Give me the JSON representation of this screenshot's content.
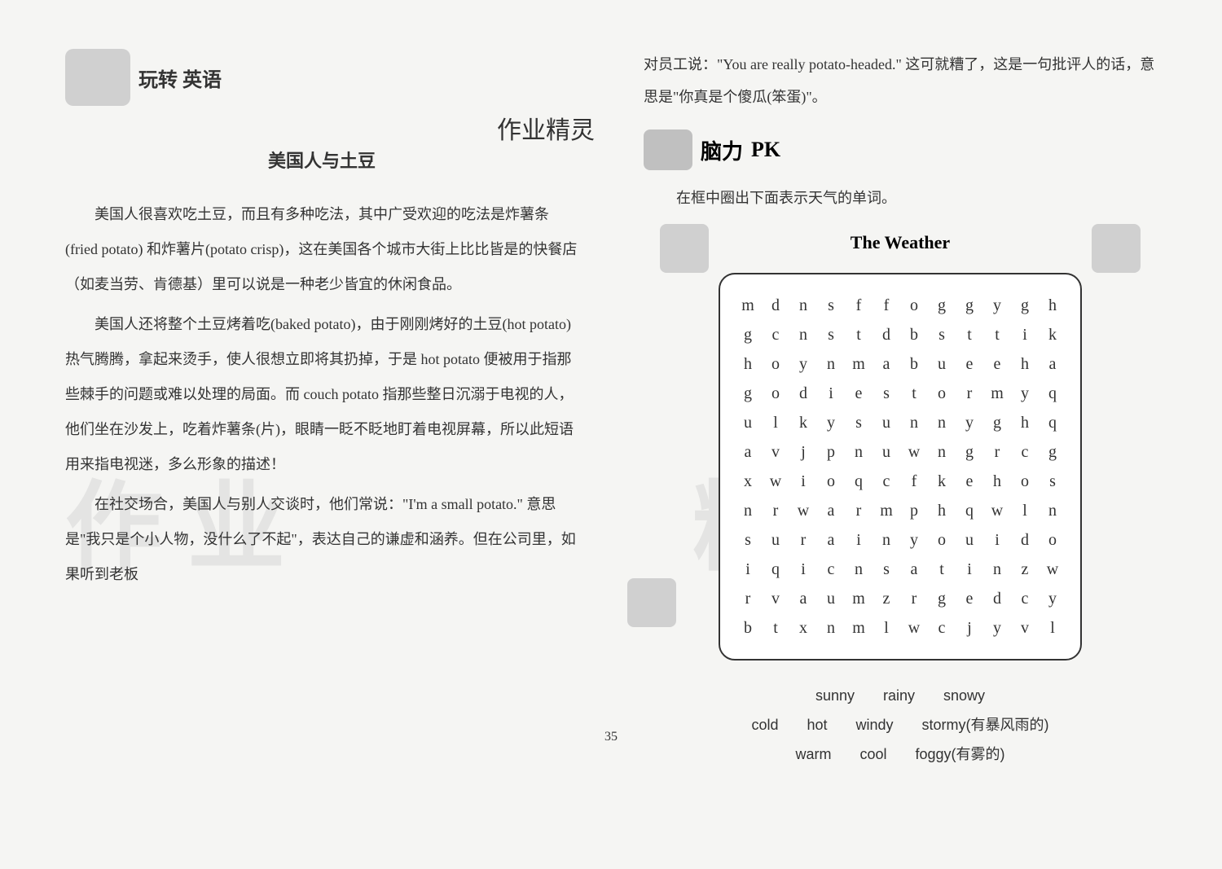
{
  "header": {
    "logo_text": "玩转 英语",
    "handwriting": "作业精灵"
  },
  "article": {
    "title": "美国人与土豆",
    "paragraphs": [
      "美国人很喜欢吃土豆，而且有多种吃法，其中广受欢迎的吃法是炸薯条(fried potato) 和炸薯片(potato crisp)，这在美国各个城市大街上比比皆是的快餐店（如麦当劳、肯德基）里可以说是一种老少皆宜的休闲食品。",
      "美国人还将整个土豆烤着吃(baked potato)，由于刚刚烤好的土豆(hot potato) 热气腾腾，拿起来烫手，使人很想立即将其扔掉，于是 hot potato 便被用于指那些棘手的问题或难以处理的局面。而 couch potato 指那些整日沉溺于电视的人，他们坐在沙发上，吃着炸薯条(片)，眼睛一眨不眨地盯着电视屏幕，所以此短语用来指电视迷，多么形象的描述！",
      "在社交场合，美国人与别人交谈时，他们常说：\"I'm a small potato.\" 意思是\"我只是个小人物，没什么了不起\"，表达自己的谦虚和涵养。但在公司里，如果听到老板"
    ]
  },
  "right_top": "对员工说：\"You are really potato-headed.\" 这可就糟了，这是一句批评人的话，意思是\"你真是个傻瓜(笨蛋)\"。",
  "brain_pk": {
    "label1": "脑力",
    "label2": "PK"
  },
  "instruction": "在框中圈出下面表示天气的单词。",
  "weather": {
    "title": "The Weather",
    "grid": [
      [
        "m",
        "d",
        "n",
        "s",
        "f",
        "f",
        "o",
        "g",
        "g",
        "y",
        "g",
        "h"
      ],
      [
        "g",
        "c",
        "n",
        "s",
        "t",
        "d",
        "b",
        "s",
        "t",
        "t",
        "i",
        "k"
      ],
      [
        "h",
        "o",
        "y",
        "n",
        "m",
        "a",
        "b",
        "u",
        "e",
        "e",
        "h",
        "a"
      ],
      [
        "g",
        "o",
        "d",
        "i",
        "e",
        "s",
        "t",
        "o",
        "r",
        "m",
        "y",
        "q"
      ],
      [
        "u",
        "l",
        "k",
        "y",
        "s",
        "u",
        "n",
        "n",
        "y",
        "g",
        "h",
        "q"
      ],
      [
        "a",
        "v",
        "j",
        "p",
        "n",
        "u",
        "w",
        "n",
        "g",
        "r",
        "c",
        "g"
      ],
      [
        "x",
        "w",
        "i",
        "o",
        "q",
        "c",
        "f",
        "k",
        "e",
        "h",
        "o",
        "s"
      ],
      [
        "n",
        "r",
        "w",
        "a",
        "r",
        "m",
        "p",
        "h",
        "q",
        "w",
        "l",
        "n"
      ],
      [
        "s",
        "u",
        "r",
        "a",
        "i",
        "n",
        "y",
        "o",
        "u",
        "i",
        "d",
        "o"
      ],
      [
        "i",
        "q",
        "i",
        "c",
        "n",
        "s",
        "a",
        "t",
        "i",
        "n",
        "z",
        "w"
      ],
      [
        "r",
        "v",
        "a",
        "u",
        "m",
        "z",
        "r",
        "g",
        "e",
        "d",
        "c",
        "y"
      ],
      [
        "b",
        "t",
        "x",
        "n",
        "m",
        "l",
        "w",
        "c",
        "j",
        "y",
        "v",
        "l"
      ]
    ],
    "grid_colors": {
      "border": "#333333",
      "text": "#333333",
      "background": "#ffffff"
    },
    "grid_font_family": "Times New Roman",
    "grid_font_size": 20,
    "words": [
      {
        "row": 1,
        "items": [
          "sunny",
          "rainy",
          "snowy"
        ]
      },
      {
        "row": 2,
        "items": [
          "cold",
          "hot",
          "windy",
          "stormy(有暴风雨的)"
        ]
      },
      {
        "row": 3,
        "items": [
          "warm",
          "cool",
          "foggy(有雾的)"
        ]
      }
    ]
  },
  "page_number": "35",
  "colors": {
    "background": "#f5f5f3",
    "text": "#333333",
    "watermark": "rgba(180,180,180,0.25)"
  },
  "watermark_text": "作业精灵"
}
